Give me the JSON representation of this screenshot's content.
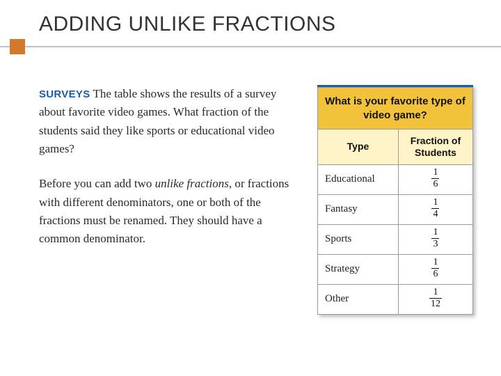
{
  "title": "ADDING UNLIKE FRACTIONS",
  "accent_color": "#d17a2e",
  "divider_color": "#b6c5d4",
  "surveys_label": "SURVEYS",
  "surveys_label_color": "#1a5da8",
  "para1_lead": "The table shows the results of a survey about favorite video games. What fraction of the students said they like sports or educational video games?",
  "para2_pre": "Before you can add two ",
  "para2_italic": "unlike fractions",
  "para2_post": ", or fractions with different denominators, one or both of the fractions must be renamed. They should have a common denominator.",
  "table": {
    "top_rule_color": "#1a5da8",
    "question": "What is your favorite type of video game?",
    "header_bg": "#f2c33a",
    "subheader_bg": "#fff3c7",
    "col_type": "Type",
    "col_fraction_line1": "Fraction of",
    "col_fraction_line2": "Students",
    "rows": [
      {
        "type": "Educational",
        "num": "1",
        "den": "6"
      },
      {
        "type": "Fantasy",
        "num": "1",
        "den": "4"
      },
      {
        "type": "Sports",
        "num": "1",
        "den": "3"
      },
      {
        "type": "Strategy",
        "num": "1",
        "den": "6"
      },
      {
        "type": "Other",
        "num": "1",
        "den": "12"
      }
    ]
  }
}
